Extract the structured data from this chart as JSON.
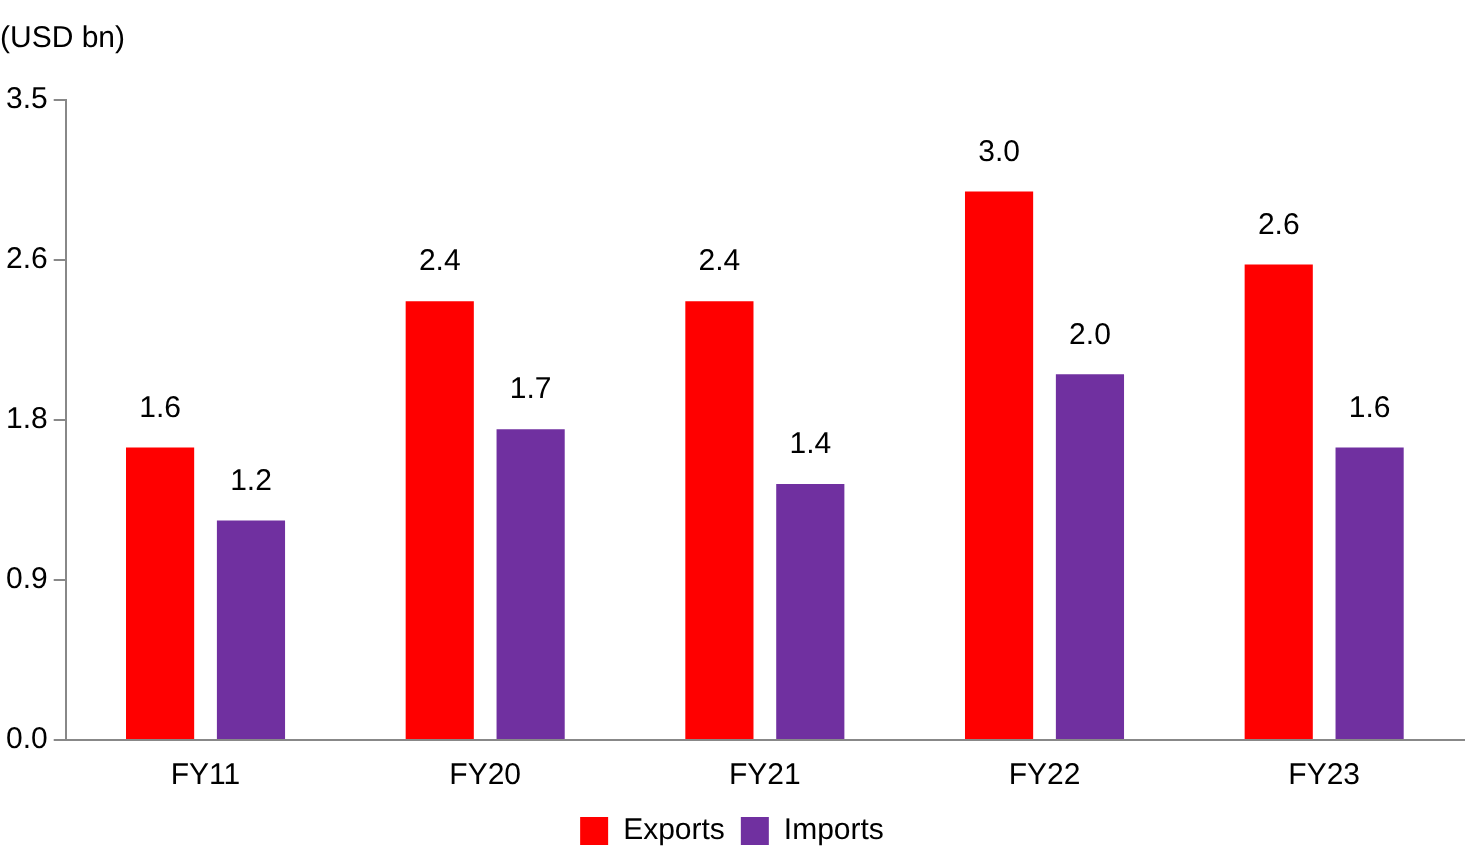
{
  "chart_data": {
    "type": "bar",
    "ylabel": "(USD bn)",
    "categories": [
      "FY11",
      "FY20",
      "FY21",
      "FY22",
      "FY23"
    ],
    "series": [
      {
        "name": "Exports",
        "color": "#ff0000",
        "values": [
          1.6,
          2.4,
          2.4,
          3.0,
          2.6
        ],
        "value_labels": [
          "1.6",
          "2.4",
          "2.4",
          "3.0",
          "2.6"
        ]
      },
      {
        "name": "Imports",
        "color": "#7030a0",
        "values": [
          1.2,
          1.7,
          1.4,
          2.0,
          1.6
        ],
        "value_labels": [
          "1.2",
          "1.7",
          "1.4",
          "2.0",
          "1.6"
        ]
      }
    ],
    "ylim": [
      0,
      3.5
    ],
    "yticks": [
      {
        "value": 0,
        "label": "0.0"
      },
      {
        "value": 0.875,
        "label": "0.9"
      },
      {
        "value": 1.75,
        "label": "1.8"
      },
      {
        "value": 2.625,
        "label": "2.6"
      },
      {
        "value": 3.5,
        "label": "3.5"
      }
    ],
    "grid": false,
    "legend": "bottom"
  }
}
